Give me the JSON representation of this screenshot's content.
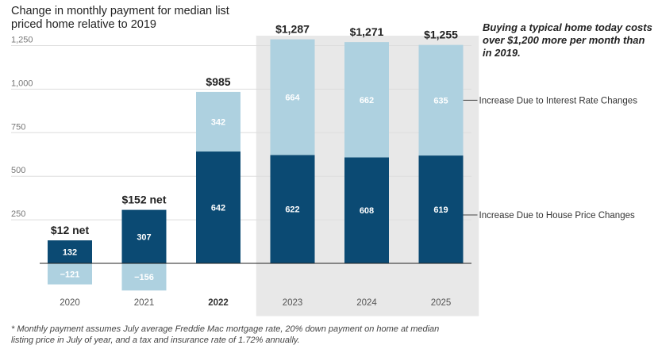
{
  "title": "Change in monthly payment for median list priced home relative to 2019",
  "annotation": "Buying a typical home today costs over $1,200 more per month than in 2019.",
  "footnote": "* Monthly payment assumes July average Freddie Mac mortgage rate, 20% down payment on home at median listing price in July of year, and a tax and insurance rate of 1.72% annually.",
  "chart_data": {
    "type": "bar",
    "stacked": true,
    "categories": [
      "2020",
      "2021",
      "2022",
      "2023",
      "2024",
      "2025"
    ],
    "bold_categories": [
      "2022"
    ],
    "highlighted_categories": [
      "2023",
      "2024",
      "2025"
    ],
    "series": [
      {
        "name": "Increase Due to House Price Changes",
        "values": [
          132,
          307,
          642,
          622,
          608,
          619
        ],
        "color": "#0b4a73",
        "label_color": "#ffffff"
      },
      {
        "name": "Increase Due to Interest Rate Changes",
        "values": [
          -121,
          -156,
          342,
          664,
          662,
          635
        ],
        "color": "#aed1e0",
        "label_color": "#ffffff"
      }
    ],
    "value_labels": [
      "132",
      "307",
      "642",
      "622",
      "608",
      "619"
    ],
    "rate_labels": [
      "−121",
      "−156",
      "342",
      "664",
      "662",
      "635"
    ],
    "totals": [
      "$12 net",
      "$152 net",
      "$985",
      "$1,287",
      "$1,271",
      "$1,255"
    ],
    "yticks": [
      250,
      500,
      750,
      1000,
      1250
    ],
    "ytick_labels": [
      "250",
      "500",
      "750",
      "1,000",
      "1,250"
    ],
    "ylim": [
      -130,
      1290
    ],
    "grid": true,
    "legend": "right of bars, labels aligned with segments",
    "colors": {
      "highlight_bg": "#e8e8e8",
      "grid": "#dddddd",
      "axis": "#222222"
    }
  }
}
